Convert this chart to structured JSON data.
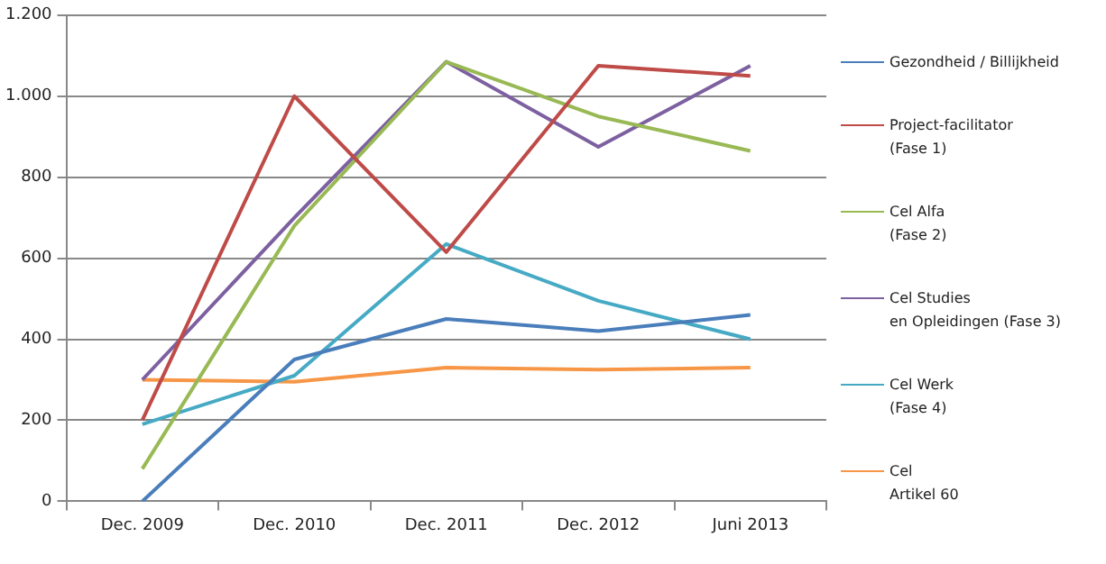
{
  "chart_data": {
    "type": "line",
    "categories": [
      "Dec. 2009",
      "Dec. 2010",
      "Dec. 2011",
      "Dec. 2012",
      "Juni 2013"
    ],
    "series": [
      {
        "name": "Gezondheid  / Billijkheid",
        "color": "#4a7ebb",
        "values": [
          0,
          350,
          450,
          420,
          460
        ]
      },
      {
        "name": "Project-facilitator\n(Fase 1)",
        "color": "#be4b48",
        "values": [
          200,
          1000,
          615,
          1075,
          1050
        ]
      },
      {
        "name": "Cel Alfa\n(Fase 2)",
        "color": "#98b954",
        "values": [
          80,
          680,
          1085,
          950,
          865
        ]
      },
      {
        "name": "Cel Studies\nen Opleidingen  (Fase 3)",
        "color": "#7d60a0",
        "values": [
          300,
          700,
          1085,
          875,
          1075
        ]
      },
      {
        "name": "Cel Werk\n(Fase 4)",
        "color": "#46aac5",
        "values": [
          190,
          310,
          635,
          495,
          400
        ]
      },
      {
        "name": "Cel\nArtikel 60",
        "color": "#f79646",
        "values": [
          300,
          295,
          330,
          325,
          330
        ]
      }
    ],
    "ylim": [
      0,
      1200
    ],
    "yticks": [
      0,
      200,
      400,
      600,
      800,
      {
        "value": 1000,
        "label": "1.000"
      },
      {
        "value": 1200,
        "label": "1.200"
      }
    ],
    "grid": "y",
    "legend": "right",
    "marker": "none",
    "line_style": "solid"
  }
}
